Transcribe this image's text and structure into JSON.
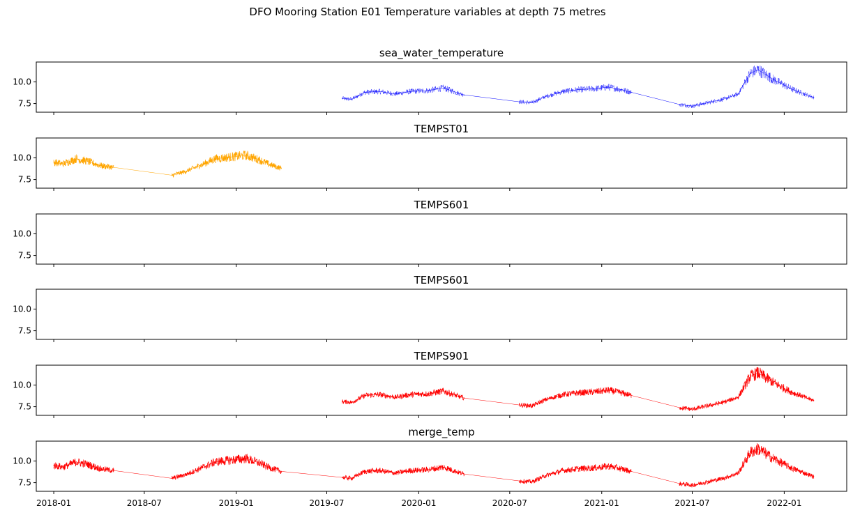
{
  "chart_data": {
    "type": "line",
    "title": "DFO Mooring Station E01 Temperature variables at depth 75 metres",
    "xlabel": "",
    "ylabel": "",
    "x_range": [
      "2017-11-27",
      "2022-05-06"
    ],
    "y_range": [
      6.5,
      12.3
    ],
    "x_ticks": [
      "2018-01",
      "2018-07",
      "2019-01",
      "2019-07",
      "2020-01",
      "2020-07",
      "2021-01",
      "2021-07",
      "2022-01"
    ],
    "y_ticks": [
      7.5,
      10.0
    ],
    "y_tick_labels": [
      "7.5",
      "10.0"
    ],
    "grid": false,
    "panels": [
      {
        "title": "sea_water_temperature",
        "series": [
          {
            "color": "#0000ff",
            "line_width": 0.4,
            "points": [
              [
                "2019-08-01",
                8.1
              ],
              [
                "2019-08-20",
                8.0
              ],
              [
                "2019-09-15",
                8.8
              ],
              [
                "2019-10-15",
                8.9
              ],
              [
                "2019-11-15",
                8.6
              ],
              [
                "2019-12-15",
                8.9
              ],
              [
                "2020-01-20",
                9.0
              ],
              [
                "2020-02-20",
                9.3
              ],
              [
                "2020-03-20",
                8.7
              ],
              [
                "2020-04-01",
                8.5
              ],
              [
                "2020-07-20",
                7.7
              ],
              [
                "2020-08-15",
                7.6
              ],
              [
                "2020-09-10",
                8.3
              ],
              [
                "2020-10-15",
                8.9
              ],
              [
                "2020-11-15",
                9.1
              ],
              [
                "2020-12-15",
                9.2
              ],
              [
                "2021-01-15",
                9.4
              ],
              [
                "2021-02-10",
                9.1
              ],
              [
                "2021-03-01",
                8.8
              ],
              [
                "2021-06-05",
                7.4
              ],
              [
                "2021-07-01",
                7.2
              ],
              [
                "2021-08-01",
                7.6
              ],
              [
                "2021-09-01",
                8.0
              ],
              [
                "2021-10-01",
                8.6
              ],
              [
                "2021-10-25",
                11.0
              ],
              [
                "2021-11-10",
                11.4
              ],
              [
                "2021-12-10",
                10.3
              ],
              [
                "2022-01-15",
                9.2
              ],
              [
                "2022-03-01",
                8.2
              ]
            ]
          }
        ]
      },
      {
        "title": "TEMPST01",
        "series": [
          {
            "color": "#ffa500",
            "line_width": 0.8,
            "points": [
              [
                "2018-01-01",
                9.5
              ],
              [
                "2018-01-20",
                9.3
              ],
              [
                "2018-02-15",
                9.9
              ],
              [
                "2018-03-10",
                9.6
              ],
              [
                "2018-04-05",
                9.1
              ],
              [
                "2018-05-01",
                8.9
              ],
              [
                "2018-08-25",
                8.0
              ],
              [
                "2018-09-20",
                8.4
              ],
              [
                "2018-10-20",
                9.1
              ],
              [
                "2018-11-20",
                9.9
              ],
              [
                "2018-12-20",
                10.1
              ],
              [
                "2019-01-20",
                10.3
              ],
              [
                "2019-02-15",
                9.8
              ],
              [
                "2019-03-10",
                9.2
              ],
              [
                "2019-04-01",
                8.8
              ]
            ]
          }
        ]
      },
      {
        "title": "TEMPS601",
        "series": []
      },
      {
        "title": "TEMPS601",
        "series": []
      },
      {
        "title": "TEMPS901",
        "series": [
          {
            "color": "#ff0000",
            "line_width": 0.8,
            "points": [
              [
                "2019-08-01",
                8.1
              ],
              [
                "2019-08-20",
                8.0
              ],
              [
                "2019-09-15",
                8.8
              ],
              [
                "2019-10-15",
                8.9
              ],
              [
                "2019-11-15",
                8.6
              ],
              [
                "2019-12-15",
                8.9
              ],
              [
                "2020-01-20",
                9.0
              ],
              [
                "2020-02-20",
                9.3
              ],
              [
                "2020-03-20",
                8.7
              ],
              [
                "2020-04-01",
                8.5
              ],
              [
                "2020-07-20",
                7.7
              ],
              [
                "2020-08-15",
                7.6
              ],
              [
                "2020-09-10",
                8.3
              ],
              [
                "2020-10-15",
                8.9
              ],
              [
                "2020-11-15",
                9.1
              ],
              [
                "2020-12-15",
                9.2
              ],
              [
                "2021-01-15",
                9.4
              ],
              [
                "2021-02-10",
                9.1
              ],
              [
                "2021-03-01",
                8.8
              ],
              [
                "2021-06-05",
                7.4
              ],
              [
                "2021-07-01",
                7.2
              ],
              [
                "2021-08-01",
                7.6
              ],
              [
                "2021-09-01",
                8.0
              ],
              [
                "2021-10-01",
                8.6
              ],
              [
                "2021-10-25",
                11.0
              ],
              [
                "2021-11-10",
                11.4
              ],
              [
                "2021-12-10",
                10.3
              ],
              [
                "2022-01-15",
                9.2
              ],
              [
                "2022-03-01",
                8.2
              ]
            ]
          }
        ]
      },
      {
        "title": "merge_temp",
        "series": [
          {
            "color": "#ff0000",
            "line_width": 0.8,
            "points": [
              [
                "2018-01-01",
                9.5
              ],
              [
                "2018-01-20",
                9.3
              ],
              [
                "2018-02-15",
                9.9
              ],
              [
                "2018-03-10",
                9.6
              ],
              [
                "2018-04-05",
                9.1
              ],
              [
                "2018-05-01",
                8.9
              ],
              [
                "2018-08-25",
                8.0
              ],
              [
                "2018-09-20",
                8.4
              ],
              [
                "2018-10-20",
                9.1
              ],
              [
                "2018-11-20",
                9.9
              ],
              [
                "2018-12-20",
                10.1
              ],
              [
                "2019-01-20",
                10.3
              ],
              [
                "2019-02-15",
                9.8
              ],
              [
                "2019-03-10",
                9.2
              ],
              [
                "2019-04-01",
                8.8
              ],
              [
                "2019-08-01",
                8.1
              ],
              [
                "2019-08-20",
                8.0
              ],
              [
                "2019-09-15",
                8.8
              ],
              [
                "2019-10-15",
                8.9
              ],
              [
                "2019-11-15",
                8.6
              ],
              [
                "2019-12-15",
                8.9
              ],
              [
                "2020-01-20",
                9.0
              ],
              [
                "2020-02-20",
                9.3
              ],
              [
                "2020-03-20",
                8.7
              ],
              [
                "2020-04-01",
                8.5
              ],
              [
                "2020-07-20",
                7.7
              ],
              [
                "2020-08-15",
                7.6
              ],
              [
                "2020-09-10",
                8.3
              ],
              [
                "2020-10-15",
                8.9
              ],
              [
                "2020-11-15",
                9.1
              ],
              [
                "2020-12-15",
                9.2
              ],
              [
                "2021-01-15",
                9.4
              ],
              [
                "2021-02-10",
                9.1
              ],
              [
                "2021-03-01",
                8.8
              ],
              [
                "2021-06-05",
                7.4
              ],
              [
                "2021-07-01",
                7.2
              ],
              [
                "2021-08-01",
                7.6
              ],
              [
                "2021-09-01",
                8.0
              ],
              [
                "2021-10-01",
                8.6
              ],
              [
                "2021-10-25",
                11.0
              ],
              [
                "2021-11-10",
                11.4
              ],
              [
                "2021-12-10",
                10.3
              ],
              [
                "2022-01-15",
                9.2
              ],
              [
                "2022-03-01",
                8.2
              ]
            ]
          }
        ]
      }
    ]
  }
}
